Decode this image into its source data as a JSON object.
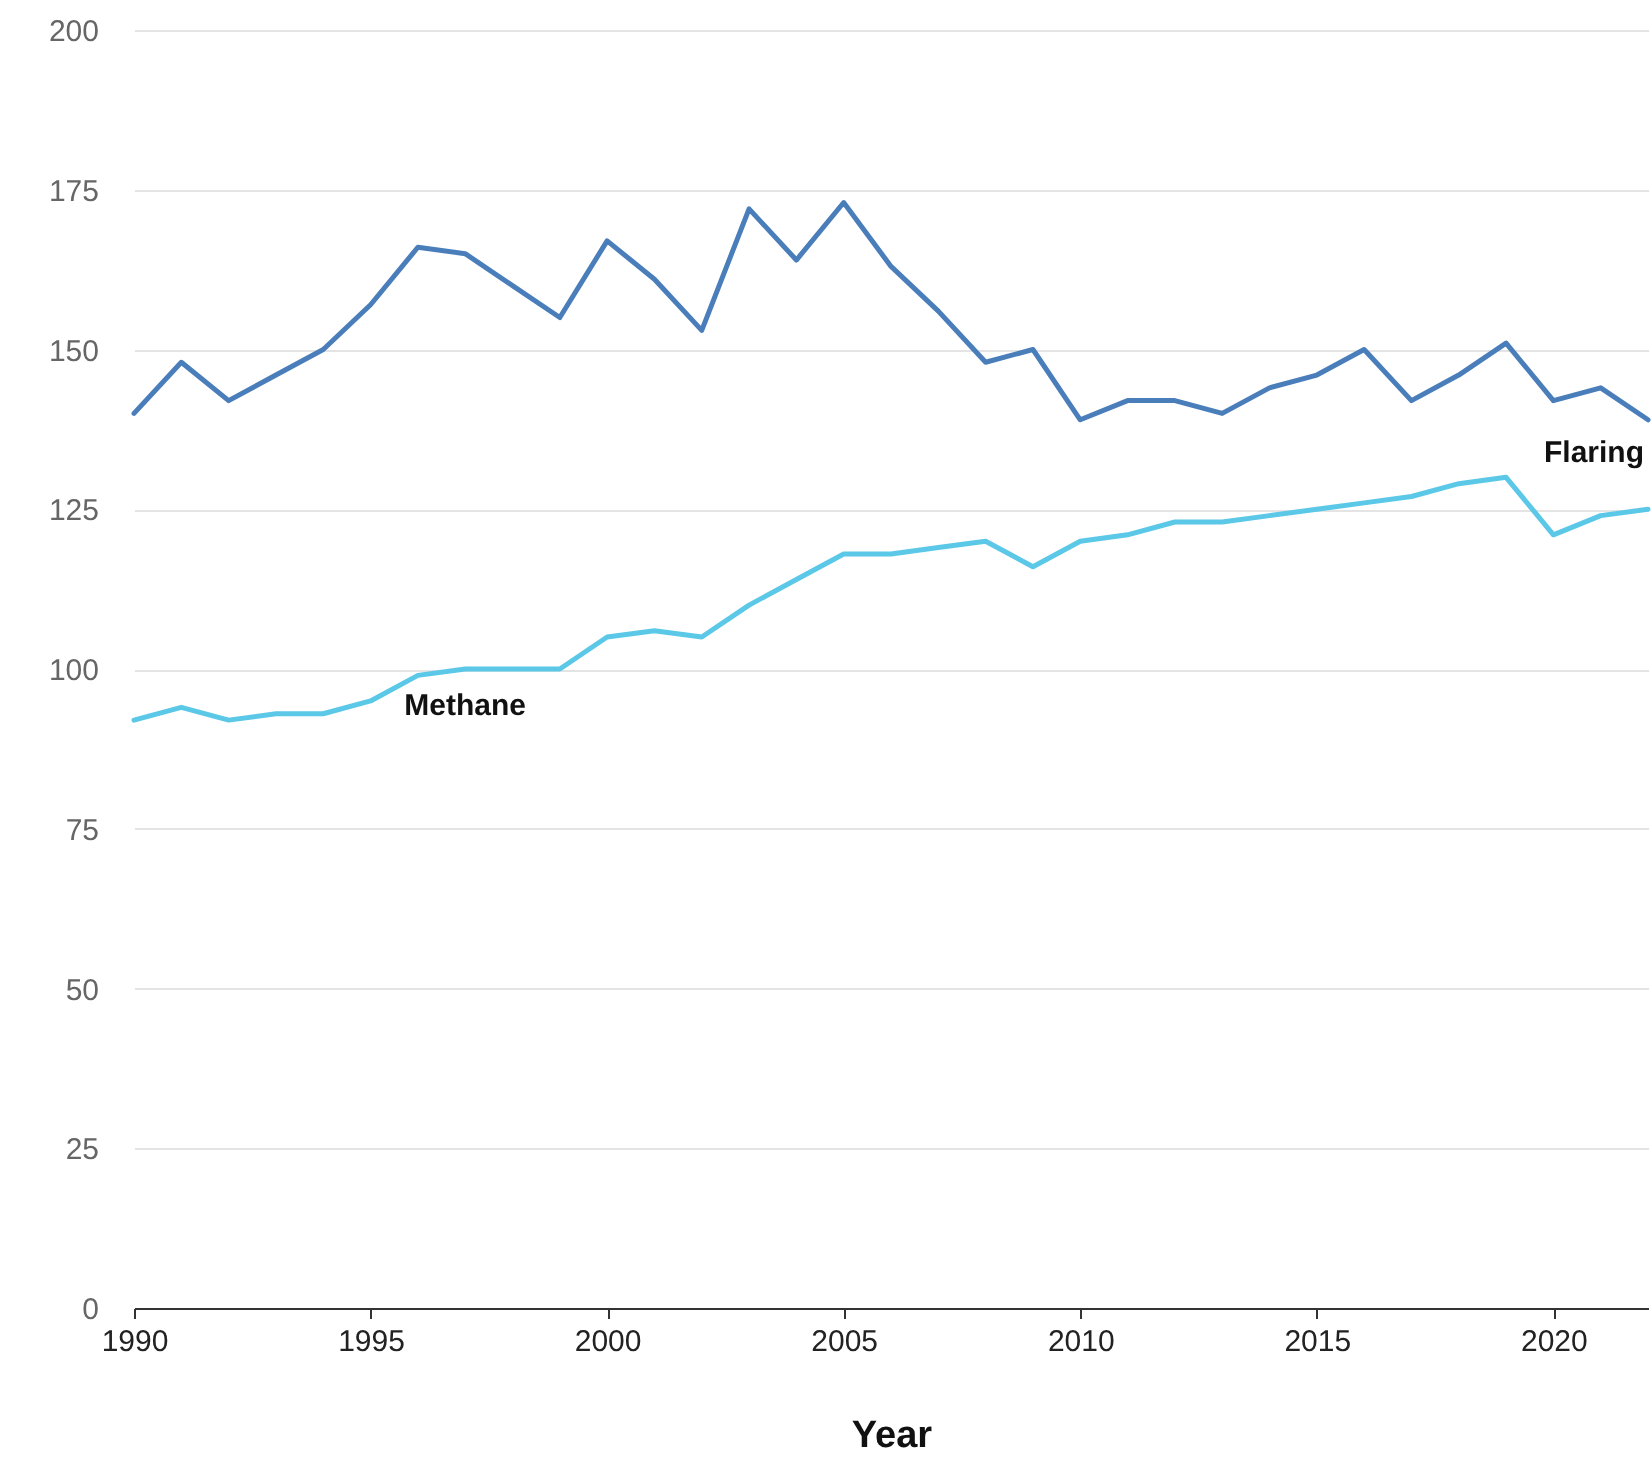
{
  "chart_data": {
    "type": "line",
    "xlabel": "Year",
    "x": [
      1990,
      1991,
      1992,
      1993,
      1994,
      1995,
      1996,
      1997,
      1998,
      1999,
      2000,
      2001,
      2002,
      2003,
      2004,
      2005,
      2006,
      2007,
      2008,
      2009,
      2010,
      2011,
      2012,
      2013,
      2014,
      2015,
      2016,
      2017,
      2018,
      2019,
      2020,
      2021,
      2022
    ],
    "series": [
      {
        "name": "Flaring",
        "color": "#4a7ebb",
        "values": [
          140,
          148,
          142,
          146,
          150,
          157,
          166,
          165,
          160,
          155,
          167,
          161,
          153,
          172,
          164,
          173,
          163,
          156,
          148,
          150,
          139,
          142,
          142,
          140,
          144,
          146,
          150,
          142,
          146,
          151,
          142,
          144,
          139
        ]
      },
      {
        "name": "Methane",
        "color": "#5bc8e8",
        "values": [
          92,
          94,
          92,
          93,
          93,
          95,
          99,
          100,
          100,
          100,
          105,
          106,
          105,
          110,
          114,
          118,
          118,
          119,
          120,
          116,
          120,
          121,
          123,
          123,
          124,
          125,
          126,
          127,
          129,
          130,
          121,
          124,
          125
        ]
      }
    ],
    "xlim": [
      1990,
      2022
    ],
    "xticks": [
      1990,
      1995,
      2000,
      2005,
      2010,
      2015,
      2020
    ],
    "ylim": [
      0,
      200
    ],
    "yticks": [
      0,
      25,
      50,
      75,
      100,
      125,
      150,
      175,
      200
    ],
    "grid": "y",
    "line_style": "solid"
  }
}
